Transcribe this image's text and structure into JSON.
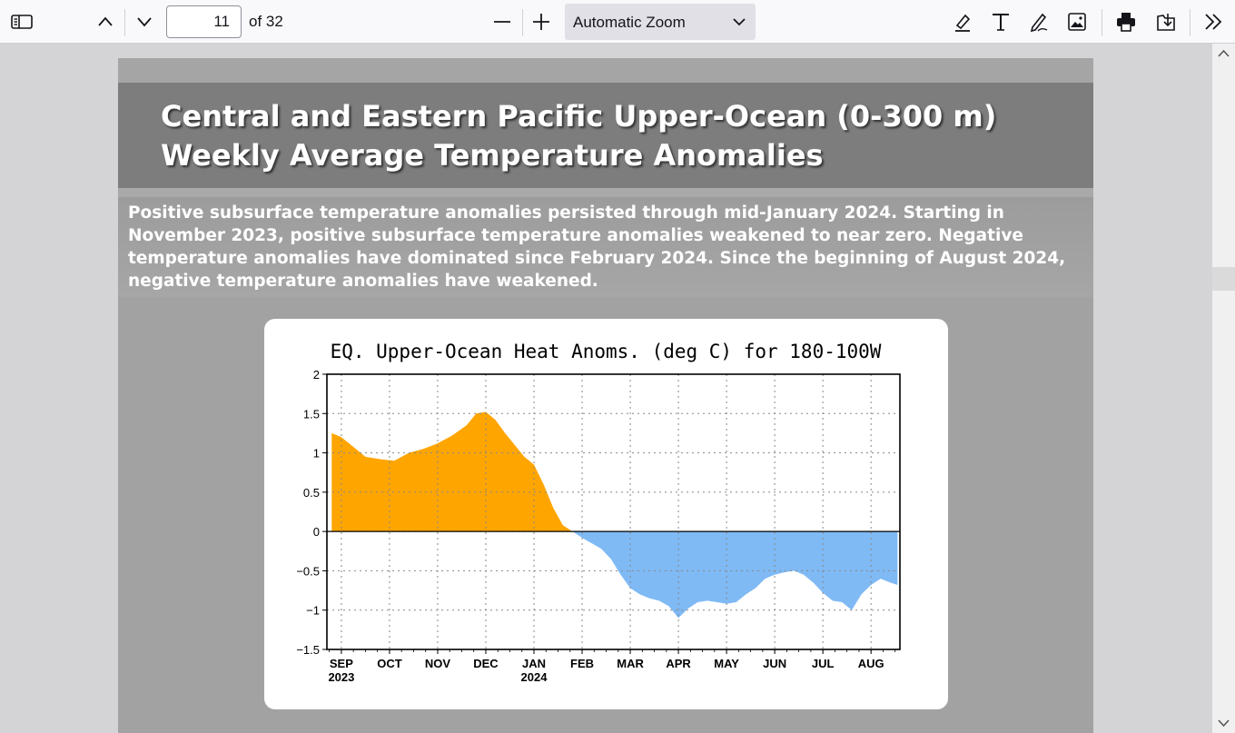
{
  "toolbar": {
    "page_number": "11",
    "page_of": "of 32",
    "zoom_label": "Automatic Zoom"
  },
  "slide": {
    "title_line1": "Central and Eastern Pacific Upper-Ocean (0-300 m)",
    "title_line2": "Weekly Average Temperature Anomalies",
    "body": "Positive subsurface temperature anomalies persisted through mid-January 2024.  Starting in November 2023, positive subsurface temperature anomalies weakened to near zero.  Negative temperature anomalies have dominated since February 2024.  Since the beginning of August 2024, negative temperature anomalies have weakened."
  },
  "icons": {
    "sidebar": "sidebar-toggle-icon",
    "prev": "chevron-up-icon",
    "next": "chevron-down-icon",
    "zoom_out": "minus-icon",
    "zoom_in": "plus-icon",
    "highlight": "highlighter-icon",
    "text": "text-tool-icon",
    "draw": "pen-icon",
    "image": "add-image-icon",
    "print": "printer-icon",
    "save": "download-icon",
    "more": "double-chevron-right-icon"
  },
  "chart_data": {
    "type": "area",
    "title": "EQ. Upper-Ocean Heat Anoms. (deg C) for 180-100W",
    "ylim": [
      -1.5,
      2
    ],
    "yticks": [
      "2",
      "1.5",
      "1",
      "0.5",
      "0",
      "-0.5",
      "-1",
      "-1.5"
    ],
    "xticks": [
      {
        "label": "SEP",
        "sub": "2023"
      },
      {
        "label": "OCT",
        "sub": ""
      },
      {
        "label": "NOV",
        "sub": ""
      },
      {
        "label": "DEC",
        "sub": ""
      },
      {
        "label": "JAN",
        "sub": "2024"
      },
      {
        "label": "FEB",
        "sub": ""
      },
      {
        "label": "MAR",
        "sub": ""
      },
      {
        "label": "APR",
        "sub": ""
      },
      {
        "label": "MAY",
        "sub": ""
      },
      {
        "label": "JUN",
        "sub": ""
      },
      {
        "label": "JUL",
        "sub": ""
      },
      {
        "label": "AUG",
        "sub": ""
      }
    ],
    "grid": true,
    "positive_color": "#ffa500",
    "negative_color": "#7fbaf5",
    "x_months_since_sep2023": [
      -0.2,
      0,
      0.2,
      0.5,
      0.8,
      1.1,
      1.4,
      1.7,
      2.0,
      2.3,
      2.6,
      2.8,
      3.0,
      3.2,
      3.4,
      3.6,
      3.8,
      4.0,
      4.2,
      4.4,
      4.6,
      4.8,
      5.0,
      5.2,
      5.4,
      5.6,
      5.8,
      6.0,
      6.2,
      6.4,
      6.6,
      6.8,
      7.0,
      7.2,
      7.4,
      7.6,
      7.8,
      8.0,
      8.2,
      8.4,
      8.6,
      8.8,
      9.0,
      9.2,
      9.4,
      9.6,
      9.8,
      10.0,
      10.2,
      10.4,
      10.6,
      10.8,
      11.0,
      11.2,
      11.4,
      11.55
    ],
    "values": [
      1.25,
      1.2,
      1.1,
      0.95,
      0.92,
      0.9,
      1.0,
      1.05,
      1.12,
      1.22,
      1.35,
      1.5,
      1.52,
      1.42,
      1.25,
      1.1,
      0.95,
      0.85,
      0.6,
      0.3,
      0.08,
      0.0,
      -0.08,
      -0.15,
      -0.22,
      -0.35,
      -0.55,
      -0.72,
      -0.8,
      -0.85,
      -0.88,
      -0.95,
      -1.1,
      -0.98,
      -0.9,
      -0.88,
      -0.9,
      -0.92,
      -0.9,
      -0.8,
      -0.72,
      -0.6,
      -0.55,
      -0.52,
      -0.5,
      -0.55,
      -0.65,
      -0.78,
      -0.88,
      -0.9,
      -1.0,
      -0.8,
      -0.68,
      -0.6,
      -0.65,
      -0.68
    ]
  }
}
